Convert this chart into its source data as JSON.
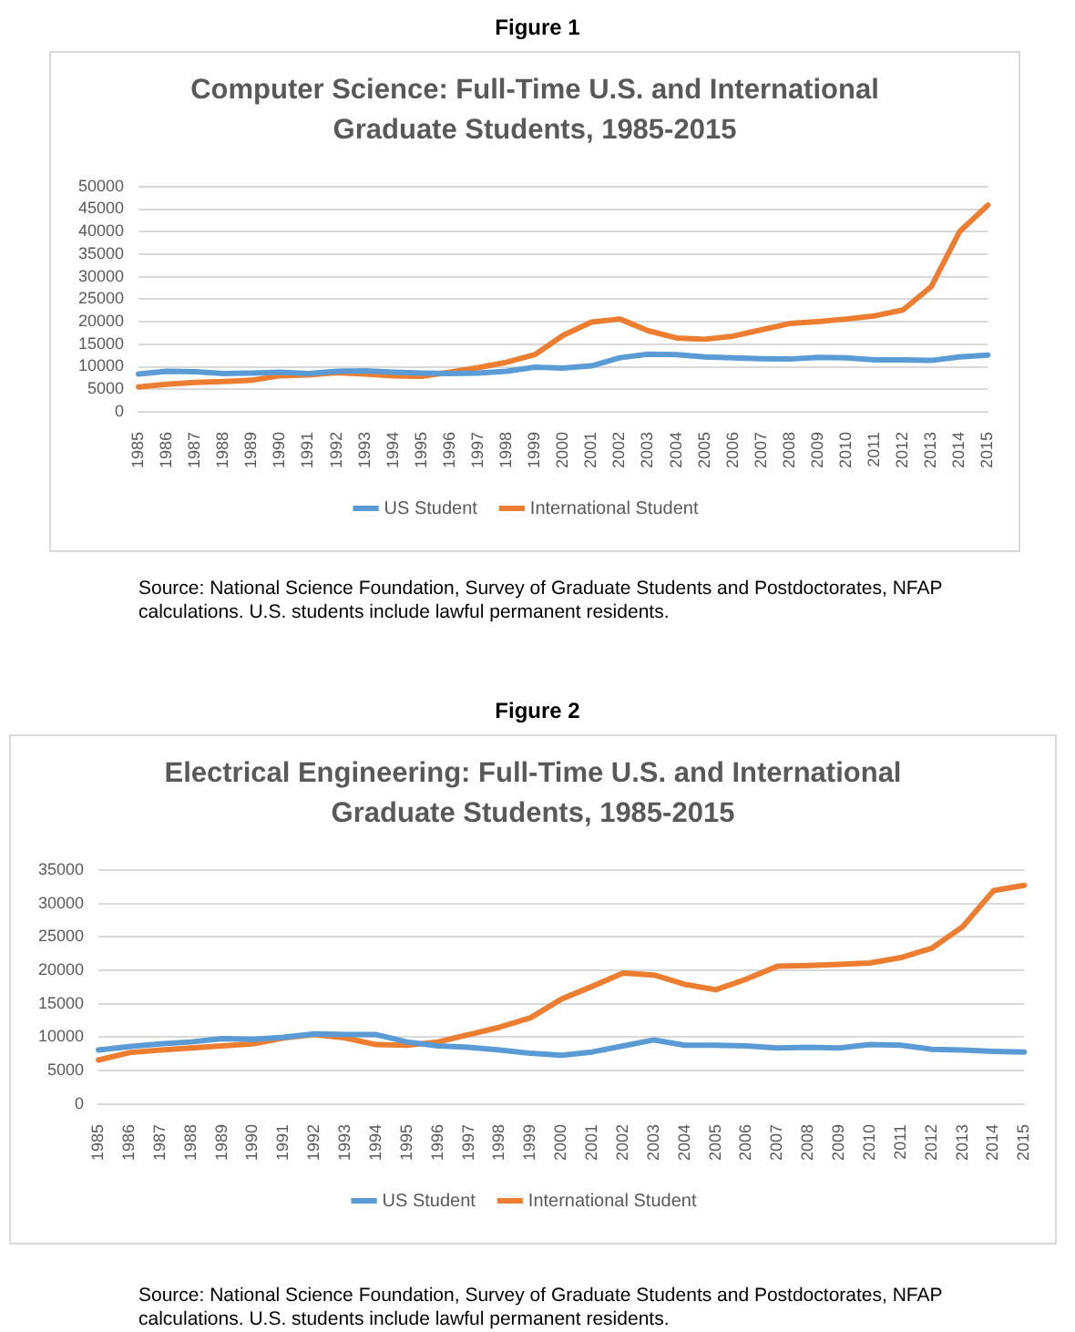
{
  "chart_data": [
    {
      "type": "line",
      "title": "Computer Science: Full-Time U.S. and International Graduate Students, 1985-2015",
      "categories": [
        "1985",
        "1986",
        "1987",
        "1988",
        "1989",
        "1990",
        "1991",
        "1992",
        "1993",
        "1994",
        "1995",
        "1996",
        "1997",
        "1998",
        "1999",
        "2000",
        "2001",
        "2002",
        "2003",
        "2004",
        "2005",
        "2006",
        "2007",
        "2008",
        "2009",
        "2010",
        "2011",
        "2012",
        "2013",
        "2014",
        "2015"
      ],
      "series": [
        {
          "name": "US Student",
          "color": "#5b9bd5",
          "values": [
            8400,
            9000,
            8900,
            8500,
            8600,
            8800,
            8500,
            9000,
            9100,
            8800,
            8600,
            8500,
            8600,
            9000,
            9900,
            9700,
            10200,
            12000,
            12800,
            12700,
            12200,
            12000,
            11800,
            11700,
            12100,
            12000,
            11500,
            11500,
            11400,
            12200,
            12600
          ]
        },
        {
          "name": "International Student",
          "color": "#ed7d31",
          "values": [
            5500,
            6100,
            6500,
            6700,
            7000,
            8000,
            8200,
            8700,
            8400,
            8000,
            7900,
            8800,
            9800,
            11000,
            12700,
            17000,
            19900,
            20600,
            18000,
            16400,
            16100,
            16800,
            18200,
            19600,
            20000,
            20600,
            21300,
            22600,
            27800,
            40000,
            45900
          ]
        }
      ],
      "ylim": [
        0,
        50000
      ],
      "yticks": [
        0,
        5000,
        10000,
        15000,
        20000,
        25000,
        30000,
        35000,
        40000,
        45000,
        50000
      ],
      "grid": "y",
      "legend": "bottom",
      "marker": "none",
      "line_style": "solid",
      "annotations": [
        "Figure 1",
        "Source: National Science Foundation, Survey of Graduate Students and Postdoctorates, NFAP calculations. U.S. students include lawful permanent residents."
      ]
    },
    {
      "type": "line",
      "title": "Electrical Engineering: Full-Time U.S. and International Graduate Students, 1985-2015",
      "categories": [
        "1985",
        "1986",
        "1987",
        "1988",
        "1989",
        "1990",
        "1991",
        "1992",
        "1993",
        "1994",
        "1995",
        "1996",
        "1997",
        "1998",
        "1999",
        "2000",
        "2001",
        "2002",
        "2003",
        "2004",
        "2005",
        "2006",
        "2007",
        "2008",
        "2009",
        "2010",
        "2011",
        "2012",
        "2013",
        "2014",
        "2015"
      ],
      "series": [
        {
          "name": "US Student",
          "color": "#5b9bd5",
          "values": [
            8100,
            8600,
            9000,
            9300,
            9800,
            9700,
            10000,
            10500,
            10400,
            10400,
            9300,
            8700,
            8500,
            8100,
            7600,
            7300,
            7800,
            8700,
            9600,
            8800,
            8800,
            8700,
            8400,
            8500,
            8400,
            8900,
            8800,
            8200,
            8100,
            7900,
            7800
          ]
        },
        {
          "name": "International Student",
          "color": "#ed7d31",
          "values": [
            6600,
            7700,
            8100,
            8400,
            8700,
            9000,
            9900,
            10400,
            9900,
            8900,
            8800,
            9300,
            10400,
            11500,
            12900,
            15700,
            17600,
            19600,
            19300,
            17900,
            17100,
            18700,
            20600,
            20700,
            20900,
            21100,
            21900,
            23300,
            26500,
            31900,
            32700
          ]
        }
      ],
      "ylim": [
        0,
        35000
      ],
      "yticks": [
        0,
        5000,
        10000,
        15000,
        20000,
        25000,
        30000,
        35000
      ],
      "grid": "y",
      "legend": "bottom",
      "marker": "none",
      "line_style": "solid",
      "annotations": [
        "Figure 2",
        "Source: National Science Foundation, Survey of Graduate Students and Postdoctorates, NFAP calculations. U.S. students include lawful permanent residents."
      ]
    }
  ]
}
